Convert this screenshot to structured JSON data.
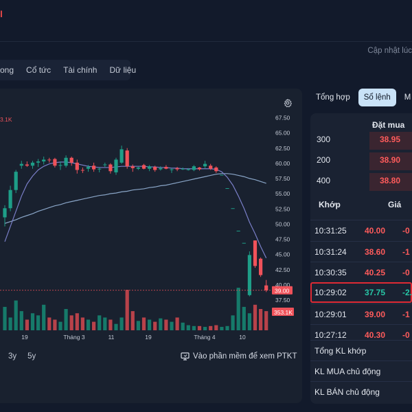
{
  "header": {
    "title_fragment": "I",
    "update_text": "Cập nhật lúc"
  },
  "subtabs": [
    "ong",
    "Cổ tức",
    "Tài chính",
    "Dữ liệu"
  ],
  "chart_data": {
    "type": "candlestick",
    "price_axis_ticks": [
      "67.50",
      "65.00",
      "62.50",
      "60.00",
      "57.50",
      "55.00",
      "52.50",
      "50.00",
      "47.50",
      "45.00",
      "42.50",
      "40.00",
      "37.50"
    ],
    "x_tick_labels": [
      "19",
      "Tháng 3",
      "11",
      "19",
      "Tháng 4",
      "10"
    ],
    "current_price_label": "39.00",
    "volume_label": "353.1K",
    "top_left_fragment": "3.1K",
    "candles": [
      {
        "o": 51.0,
        "h": 53.0,
        "l": 49.5,
        "c": 52.5
      },
      {
        "o": 52.5,
        "h": 56.2,
        "l": 52.0,
        "c": 55.5
      },
      {
        "o": 55.5,
        "h": 58.8,
        "l": 55.0,
        "c": 58.5
      },
      {
        "o": 59.5,
        "h": 60.3,
        "l": 59.0,
        "c": 59.8
      },
      {
        "o": 59.7,
        "h": 60.2,
        "l": 59.3,
        "c": 59.5
      },
      {
        "o": 59.5,
        "h": 60.3,
        "l": 59.0,
        "c": 60.0
      },
      {
        "o": 60.0,
        "h": 60.6,
        "l": 59.3,
        "c": 60.2
      },
      {
        "o": 60.2,
        "h": 61.0,
        "l": 59.7,
        "c": 60.5
      },
      {
        "o": 60.5,
        "h": 60.8,
        "l": 60.0,
        "c": 60.4
      },
      {
        "o": 60.6,
        "h": 60.8,
        "l": 59.2,
        "c": 59.5
      },
      {
        "o": 59.5,
        "h": 60.2,
        "l": 58.8,
        "c": 59.6
      },
      {
        "o": 59.5,
        "h": 61.2,
        "l": 59.2,
        "c": 60.8
      },
      {
        "o": 60.8,
        "h": 61.0,
        "l": 59.5,
        "c": 60.0
      },
      {
        "o": 60.0,
        "h": 60.5,
        "l": 58.2,
        "c": 58.8
      },
      {
        "o": 58.8,
        "h": 59.2,
        "l": 58.3,
        "c": 58.7
      },
      {
        "o": 59.0,
        "h": 59.6,
        "l": 58.5,
        "c": 59.3
      },
      {
        "o": 59.5,
        "h": 60.0,
        "l": 58.5,
        "c": 58.9
      },
      {
        "o": 58.9,
        "h": 59.2,
        "l": 58.4,
        "c": 59.0
      },
      {
        "o": 59.6,
        "h": 60.0,
        "l": 59.3,
        "c": 59.7
      },
      {
        "o": 59.7,
        "h": 59.9,
        "l": 58.2,
        "c": 58.6
      },
      {
        "o": 58.4,
        "h": 60.8,
        "l": 58.0,
        "c": 60.5
      },
      {
        "o": 60.0,
        "h": 62.8,
        "l": 59.8,
        "c": 62.2
      },
      {
        "o": 62.0,
        "h": 62.4,
        "l": 59.0,
        "c": 59.4
      },
      {
        "o": 59.4,
        "h": 59.7,
        "l": 58.5,
        "c": 59.1
      },
      {
        "o": 59.0,
        "h": 59.3,
        "l": 58.8,
        "c": 59.2
      },
      {
        "o": 59.6,
        "h": 59.8,
        "l": 58.9,
        "c": 59.0
      },
      {
        "o": 59.0,
        "h": 59.6,
        "l": 58.6,
        "c": 59.4
      },
      {
        "o": 59.3,
        "h": 59.5,
        "l": 58.5,
        "c": 58.8
      },
      {
        "o": 58.9,
        "h": 59.4,
        "l": 58.7,
        "c": 59.1
      },
      {
        "o": 59.3,
        "h": 59.6,
        "l": 58.9,
        "c": 59.0
      },
      {
        "o": 58.8,
        "h": 59.1,
        "l": 58.3,
        "c": 58.9
      },
      {
        "o": 59.1,
        "h": 59.3,
        "l": 58.6,
        "c": 58.9
      },
      {
        "o": 59.0,
        "h": 59.2,
        "l": 58.8,
        "c": 59.0
      },
      {
        "o": 58.9,
        "h": 59.1,
        "l": 58.7,
        "c": 58.9
      },
      {
        "o": 58.8,
        "h": 59.6,
        "l": 58.6,
        "c": 59.4
      },
      {
        "o": 59.2,
        "h": 59.3,
        "l": 58.7,
        "c": 58.9
      },
      {
        "o": 59.4,
        "h": 60.3,
        "l": 59.1,
        "c": 59.8
      },
      {
        "o": 59.5,
        "h": 59.8,
        "l": 58.8,
        "c": 59.0
      },
      {
        "o": 59.2,
        "h": 59.4,
        "l": 58.3,
        "c": 58.6
      },
      {
        "o": 58.0,
        "h": 58.0,
        "l": 58.0,
        "c": 58.0
      },
      {
        "o": 55.8,
        "h": 55.8,
        "l": 55.8,
        "c": 55.8
      },
      {
        "o": 52.5,
        "h": 52.5,
        "l": 52.5,
        "c": 52.5
      },
      {
        "o": 48.8,
        "h": 48.8,
        "l": 48.8,
        "c": 48.8
      },
      {
        "o": 46.8,
        "h": 46.8,
        "l": 46.8,
        "c": 46.8
      },
      {
        "o": 38.2,
        "h": 45.4,
        "l": 38.0,
        "c": 44.8
      },
      {
        "o": 47.2,
        "h": 47.2,
        "l": 42.7,
        "c": 43.0
      },
      {
        "o": 44.2,
        "h": 44.4,
        "l": 41.2,
        "c": 41.5
      },
      {
        "o": 39.8,
        "h": 40.7,
        "l": 38.7,
        "c": 39.0
      }
    ],
    "ma_fast": [
      47.0,
      49.5,
      52.0,
      54.5,
      56.5,
      57.8,
      58.8,
      59.4,
      59.8,
      60.0,
      60.1,
      60.1,
      60.0,
      59.8,
      59.6,
      59.4,
      59.3,
      59.2,
      59.2,
      59.2,
      59.3,
      59.4,
      59.4,
      59.4,
      59.4,
      59.4,
      59.3,
      59.3,
      59.2,
      59.2,
      59.1,
      59.1,
      59.0,
      59.0,
      59.0,
      59.0,
      59.0,
      59.0,
      58.9,
      58.5,
      57.6,
      56.3,
      54.5,
      52.5,
      50.2,
      48.3,
      46.2,
      44.3
    ],
    "ma_slow": [
      50.0,
      50.3,
      50.6,
      51.0,
      51.3,
      51.6,
      52.0,
      52.3,
      52.6,
      52.9,
      53.1,
      53.4,
      53.6,
      53.8,
      54.0,
      54.2,
      54.4,
      54.6,
      54.7,
      54.9,
      55.0,
      55.2,
      55.3,
      55.5,
      55.6,
      55.7,
      55.9,
      56.0,
      56.2,
      56.3,
      56.5,
      56.7,
      56.9,
      57.1,
      57.3,
      57.5,
      57.7,
      57.9,
      58.1,
      58.2,
      58.2,
      58.1,
      57.9,
      57.7,
      57.4,
      57.2,
      56.9,
      56.6
    ],
    "volumes": [
      0.55,
      0.3,
      0.7,
      0.45,
      0.25,
      0.4,
      0.35,
      0.6,
      0.3,
      0.25,
      0.2,
      0.5,
      0.35,
      0.4,
      0.3,
      0.25,
      0.2,
      0.35,
      0.3,
      0.25,
      0.15,
      0.3,
      0.95,
      0.45,
      0.22,
      0.3,
      0.25,
      0.2,
      0.28,
      0.25,
      0.2,
      0.3,
      0.18,
      0.12,
      0.1,
      0.1,
      0.08,
      0.1,
      0.12,
      0.08,
      0.1,
      0.35,
      1.0,
      0.55,
      0.4,
      0.6,
      0.5,
      0.45
    ],
    "ylim": [
      36.0,
      68.5
    ]
  },
  "range_buttons": [
    "3y",
    "5y"
  ],
  "ptkt_label": "Vào phần mềm để xem PTKT",
  "right_tabs": [
    {
      "label": "Tổng hợp",
      "active": false
    },
    {
      "label": "Sổ lệnh",
      "active": true
    },
    {
      "label": "M",
      "active": false
    }
  ],
  "orderbook": {
    "header": "Đặt mua",
    "bids": [
      {
        "vol": "300",
        "price": "38.95"
      },
      {
        "vol": "200",
        "price": "38.90"
      },
      {
        "vol": "400",
        "price": "38.80"
      }
    ],
    "match_time_header": "Khớp",
    "match_price_header": "Giá",
    "trades": [
      {
        "time": "10:31:25",
        "price": "40.00",
        "chg": "-0",
        "color": "red",
        "highlight": false
      },
      {
        "time": "10:31:24",
        "price": "38.60",
        "chg": "-1",
        "color": "red",
        "highlight": false
      },
      {
        "time": "10:30:35",
        "price": "40.25",
        "chg": "-0",
        "color": "red",
        "highlight": false
      },
      {
        "time": "10:29:02",
        "price": "37.75",
        "chg": "-2.",
        "color": "green",
        "highlight": true
      },
      {
        "time": "10:29:01",
        "price": "39.00",
        "chg": "-1",
        "color": "red",
        "highlight": false
      },
      {
        "time": "10:27:12",
        "price": "40.30",
        "chg": "-0",
        "color": "red",
        "highlight": false
      }
    ],
    "summary": [
      "Tổng KL khớp",
      "KL MUA chủ động",
      "KL BÁN chủ động"
    ]
  },
  "colors": {
    "up": "#1e9e88",
    "down": "#f0525a",
    "accent": "#c9e2f7",
    "highlight_border": "#e02a34"
  }
}
